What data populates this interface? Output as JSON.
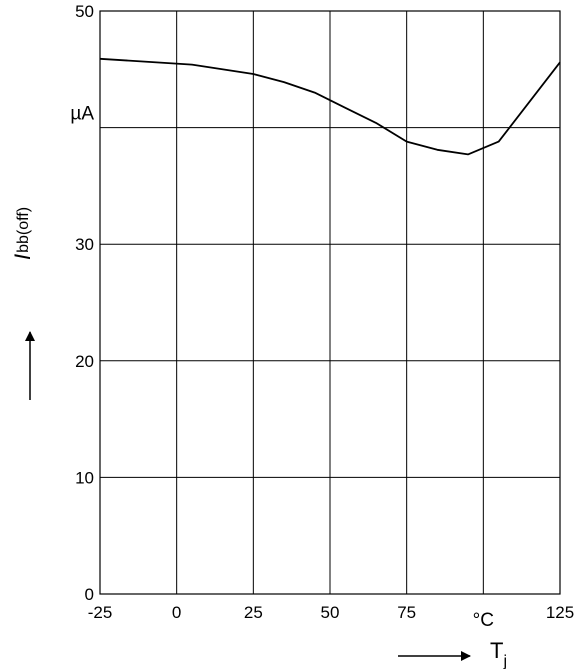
{
  "chart_data": {
    "type": "line",
    "xlim": [
      -25,
      125
    ],
    "ylim": [
      0,
      50
    ],
    "x_ticks": [
      {
        "value": -25,
        "label": "-25"
      },
      {
        "value": 0,
        "label": "0"
      },
      {
        "value": 25,
        "label": "25"
      },
      {
        "value": 50,
        "label": "50"
      },
      {
        "value": 75,
        "label": "75"
      },
      {
        "value": 100,
        "label": "°C"
      },
      {
        "value": 125,
        "label": "125"
      }
    ],
    "y_ticks": [
      {
        "value": 0,
        "label": "0"
      },
      {
        "value": 10,
        "label": "10"
      },
      {
        "value": 20,
        "label": "20"
      },
      {
        "value": 30,
        "label": "30"
      },
      {
        "value": 40,
        "label": "µA"
      },
      {
        "value": 50,
        "label": "50"
      }
    ],
    "grid": true,
    "xlabel": {
      "main": "T",
      "sub": "j"
    },
    "ylabel": {
      "main": "I",
      "sub": "bb(off)"
    },
    "series": [
      {
        "x": [
          -25,
          5,
          25,
          35,
          45,
          55,
          65,
          75,
          85,
          95,
          105,
          125
        ],
        "y": [
          45.9,
          45.4,
          44.6,
          43.9,
          43.0,
          41.7,
          40.4,
          38.8,
          38.1,
          37.7,
          38.8,
          45.6
        ]
      }
    ]
  }
}
